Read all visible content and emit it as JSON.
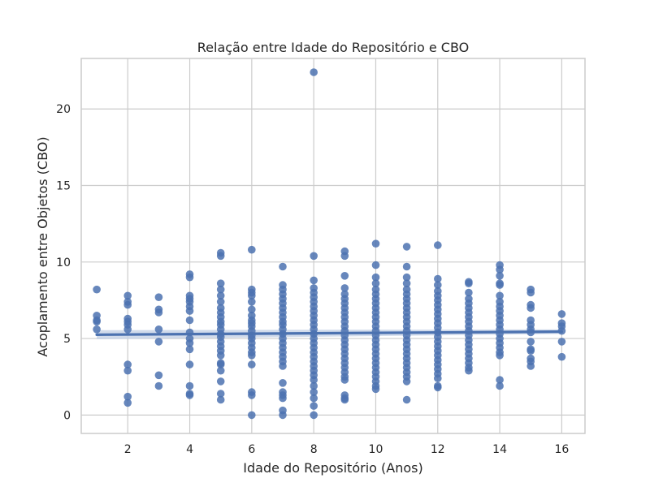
{
  "chart_data": {
    "type": "scatter",
    "title": "Relação entre Idade do Repositório e CBO",
    "xlabel": "Idade do Repositório (Anos)",
    "ylabel": "Acoplamento entre Objetos (CBO)",
    "xlim": [
      0.5,
      16.75
    ],
    "ylim": [
      -1.2,
      23.3
    ],
    "xticks": [
      2,
      4,
      6,
      8,
      10,
      12,
      14,
      16
    ],
    "yticks": [
      0,
      5,
      10,
      15,
      20
    ],
    "grid": true,
    "point_color": "#4c72b0",
    "line_color": "#4c72b0",
    "band_color": "#c5d2e6",
    "regression": {
      "x": [
        1,
        16
      ],
      "y": [
        5.25,
        5.45
      ],
      "ci_lower": [
        4.95,
        5.3
      ],
      "ci_upper": [
        5.55,
        5.6
      ]
    },
    "points": {
      "1": [
        8.2,
        6.5,
        6.2,
        6.1,
        5.6
      ],
      "2": [
        7.8,
        7.4,
        7.2,
        6.3,
        6.1,
        5.9,
        5.6,
        3.3,
        2.9,
        1.2,
        0.8
      ],
      "3": [
        7.7,
        6.9,
        6.7,
        5.6,
        4.8,
        2.6,
        1.9
      ],
      "4": [
        9.2,
        9.0,
        7.8,
        7.6,
        7.4,
        7.1,
        6.8,
        6.2,
        5.4,
        5.0,
        4.7,
        4.3,
        3.3,
        1.9,
        1.4,
        1.3
      ],
      "5": [
        10.6,
        10.4,
        8.6,
        8.2,
        7.8,
        7.4,
        7.0,
        6.7,
        6.4,
        6.1,
        5.9,
        5.6,
        5.3,
        5.1,
        4.8,
        4.5,
        4.2,
        3.9,
        3.4,
        3.3,
        2.9,
        2.2,
        1.4,
        1.0
      ],
      "6": [
        10.8,
        8.2,
        8.0,
        7.8,
        7.4,
        6.9,
        6.5,
        6.2,
        6.0,
        5.8,
        5.5,
        5.2,
        5.0,
        4.7,
        4.4,
        4.1,
        3.9,
        3.3,
        1.5,
        1.3,
        0.0
      ],
      "7": [
        9.7,
        8.5,
        8.2,
        7.9,
        7.6,
        7.3,
        7.0,
        6.7,
        6.4,
        6.1,
        5.9,
        5.6,
        5.3,
        5.0,
        4.7,
        4.4,
        4.1,
        3.8,
        3.5,
        3.2,
        2.1,
        1.5,
        1.3,
        1.1,
        0.3,
        0.0
      ],
      "8": [
        22.4,
        10.4,
        8.8,
        8.3,
        8.0,
        7.7,
        7.4,
        7.1,
        6.8,
        6.5,
        6.2,
        5.9,
        5.6,
        5.3,
        5.0,
        4.7,
        4.4,
        4.1,
        3.8,
        3.5,
        3.2,
        2.9,
        2.6,
        2.3,
        1.9,
        1.5,
        1.1,
        0.6,
        0.0
      ],
      "9": [
        10.7,
        10.4,
        9.1,
        8.3,
        7.9,
        7.6,
        7.3,
        7.0,
        6.7,
        6.4,
        6.1,
        5.8,
        5.5,
        5.2,
        4.9,
        4.6,
        4.3,
        4.0,
        3.7,
        3.4,
        3.1,
        2.8,
        2.5,
        2.3,
        1.3,
        1.1,
        1.0
      ],
      "10": [
        11.2,
        9.8,
        9.0,
        8.6,
        8.2,
        7.9,
        7.6,
        7.3,
        7.0,
        6.7,
        6.4,
        6.1,
        5.8,
        5.5,
        5.2,
        4.9,
        4.6,
        4.3,
        4.0,
        3.7,
        3.4,
        3.1,
        2.8,
        2.5,
        2.2,
        1.9,
        1.7
      ],
      "11": [
        11.0,
        9.7,
        9.0,
        8.6,
        8.2,
        7.9,
        7.6,
        7.3,
        7.0,
        6.7,
        6.4,
        6.1,
        5.8,
        5.5,
        5.2,
        4.9,
        4.6,
        4.3,
        4.0,
        3.7,
        3.4,
        3.1,
        2.8,
        2.5,
        2.2,
        1.0
      ],
      "12": [
        11.1,
        8.9,
        8.5,
        8.1,
        7.8,
        7.5,
        7.2,
        6.9,
        6.6,
        6.3,
        6.0,
        5.7,
        5.4,
        5.1,
        4.8,
        4.5,
        4.2,
        3.9,
        3.6,
        3.3,
        3.0,
        2.7,
        2.4,
        1.9,
        1.8
      ],
      "13": [
        8.7,
        8.6,
        8.0,
        7.6,
        7.3,
        7.0,
        6.7,
        6.4,
        6.1,
        5.8,
        5.5,
        5.2,
        4.9,
        4.6,
        4.3,
        4.0,
        3.7,
        3.4,
        3.1,
        2.9
      ],
      "14": [
        9.8,
        9.5,
        9.1,
        8.6,
        8.5,
        7.8,
        7.4,
        7.1,
        6.8,
        6.5,
        6.2,
        5.9,
        5.6,
        5.3,
        5.0,
        4.7,
        4.4,
        4.1,
        3.9,
        2.3,
        1.9
      ],
      "15": [
        8.2,
        8.0,
        7.2,
        7.0,
        6.2,
        5.9,
        5.6,
        5.4,
        4.8,
        4.3,
        4.2,
        3.7,
        3.5,
        3.2
      ],
      "16": [
        6.6,
        6.0,
        5.8,
        5.5,
        4.8,
        3.8
      ]
    }
  }
}
